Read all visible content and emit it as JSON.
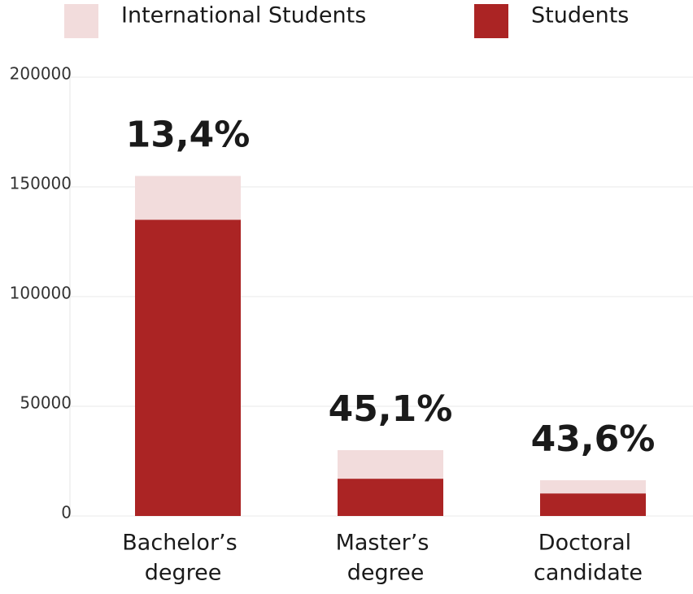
{
  "chart_data": {
    "type": "stacked-bar",
    "categories": [
      [
        "Bachelor’s",
        "degree"
      ],
      [
        "Master’s",
        "degree"
      ],
      [
        "Doctoral",
        "candidate"
      ]
    ],
    "series": [
      {
        "name": "International Students",
        "color": "#f2dcdc",
        "values": [
          20000,
          13000,
          6000
        ]
      },
      {
        "name": "Students",
        "color": "#ab2424",
        "values": [
          135000,
          17000,
          10300
        ]
      }
    ],
    "annotations": [
      "13,4%",
      "45,1%",
      "43,6%"
    ],
    "ylim": [
      0,
      200000
    ],
    "yticks": [
      0,
      50000,
      100000,
      150000,
      200000
    ],
    "grid": true
  }
}
